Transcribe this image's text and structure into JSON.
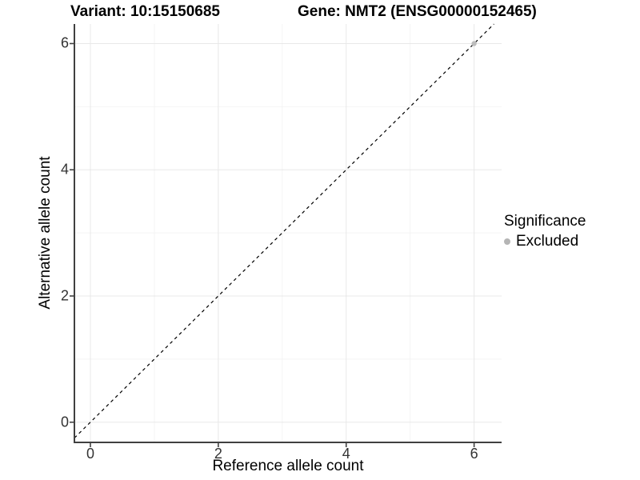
{
  "chart_data": {
    "type": "scatter",
    "title_variant": "Variant: 10:15150685",
    "title_gene": "Gene: NMT2 (ENSG00000152465)",
    "xlabel": "Reference allele count",
    "ylabel": "Alternative allele count",
    "xlim": [
      -0.25,
      6.43
    ],
    "ylim": [
      -0.32,
      6.31
    ],
    "x_ticks": [
      0,
      2,
      4,
      6
    ],
    "y_ticks": [
      0,
      2,
      4,
      6
    ],
    "x_minor_ticks": [
      1,
      3,
      5
    ],
    "y_minor_ticks": [
      1,
      3,
      5
    ],
    "grid": true,
    "reference_line": {
      "type": "identity y=x",
      "style": "dashed",
      "color": "#000000"
    },
    "series": [
      {
        "name": "Excluded",
        "color": "#bdbdbd",
        "points": [
          [
            6,
            6
          ]
        ]
      }
    ],
    "legend": {
      "title": "Significance",
      "position": "right",
      "entries": [
        {
          "label": "Excluded",
          "color": "#b5b5b5"
        }
      ]
    },
    "colors": {
      "axis": "#404040",
      "tick_label": "#333333",
      "grid_major": "#e8e8e8",
      "grid_minor": "#f4f4f4",
      "background": "#ffffff"
    }
  }
}
